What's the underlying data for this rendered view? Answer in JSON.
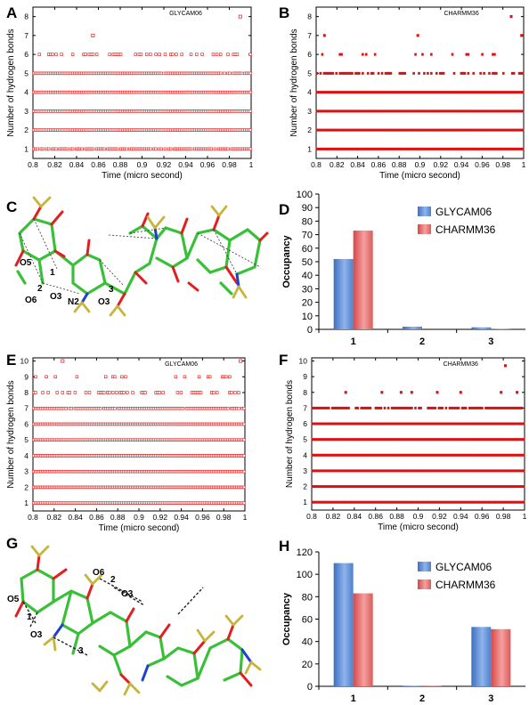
{
  "panels": {
    "A": {
      "label": "A"
    },
    "B": {
      "label": "B"
    },
    "C": {
      "label": "C"
    },
    "D": {
      "label": "D"
    },
    "E": {
      "label": "E"
    },
    "F": {
      "label": "F"
    },
    "G": {
      "label": "G"
    },
    "H": {
      "label": "H"
    }
  },
  "colors": {
    "red_marker": "#dd1111",
    "bar_blue": "#5b8fd6",
    "bar_red": "#e46a6a",
    "carbon": "#38c038",
    "oxygen": "#e02020",
    "nitrogen": "#2040d0",
    "sulfur": "#c8b43c"
  },
  "chart_data": [
    {
      "id": "A",
      "type": "scatter",
      "tag": "GLYCAM06",
      "xlabel": "Time (micro second)",
      "ylabel": "Number of hydrogen bonds",
      "xlim": [
        0.8,
        1.0
      ],
      "ylim": [
        0.5,
        8.5
      ],
      "xticks": [
        "0.8",
        "0.82",
        "0.84",
        "0.86",
        "0.88",
        "0.9",
        "0.92",
        "0.94",
        "0.96",
        "0.98",
        "1"
      ],
      "yticks": [
        "1",
        "2",
        "3",
        "4",
        "5",
        "6",
        "7",
        "8"
      ],
      "levels": [
        {
          "y": 1,
          "density": 0.72
        },
        {
          "y": 2,
          "density": 1.0
        },
        {
          "y": 3,
          "density": 1.0
        },
        {
          "y": 4,
          "density": 1.0
        },
        {
          "y": 5,
          "density": 0.98
        },
        {
          "y": 6,
          "density": 0.25
        }
      ],
      "sparse_points": [
        {
          "x": 0.855,
          "y": 7
        },
        {
          "x": 0.99,
          "y": 8
        }
      ],
      "marker": "open-square"
    },
    {
      "id": "B",
      "type": "scatter",
      "tag": "CHARMM36",
      "xlabel": "Time (micro second)",
      "ylabel": "Number of hydrogen bonds",
      "xlim": [
        0.8,
        1.0
      ],
      "ylim": [
        0.5,
        8.5
      ],
      "xticks": [
        "0.8",
        "0.82",
        "0.84",
        "0.86",
        "0.88",
        "0.9",
        "0.92",
        "0.94",
        "0.96",
        "0.98",
        "1"
      ],
      "yticks": [
        "1",
        "2",
        "3",
        "4",
        "5",
        "6",
        "7",
        "8"
      ],
      "levels": [
        {
          "y": 1,
          "density": 1.0
        },
        {
          "y": 2,
          "density": 1.0
        },
        {
          "y": 3,
          "density": 1.0
        },
        {
          "y": 4,
          "density": 1.0
        },
        {
          "y": 5,
          "density": 0.62
        },
        {
          "y": 6,
          "density": 0.16
        }
      ],
      "sparse_points": [
        {
          "x": 0.808,
          "y": 7
        },
        {
          "x": 0.898,
          "y": 7
        },
        {
          "x": 0.998,
          "y": 7
        },
        {
          "x": 0.988,
          "y": 8
        }
      ],
      "marker": "filled-square"
    },
    {
      "id": "D",
      "type": "bar",
      "ylabel": "Occupancy",
      "categories": [
        "1",
        "2",
        "3"
      ],
      "ylim": [
        0,
        100
      ],
      "yticks": [
        "0",
        "10",
        "20",
        "30",
        "40",
        "50",
        "60",
        "70",
        "80",
        "90",
        "100"
      ],
      "series": [
        {
          "name": "GLYCAM06",
          "values": [
            52,
            2,
            1.5
          ]
        },
        {
          "name": "CHARMM36",
          "values": [
            73,
            0,
            0.5
          ]
        }
      ],
      "legend": "top-right"
    },
    {
      "id": "E",
      "type": "scatter",
      "tag": "GLYCAM06",
      "xlabel": "Time (micro second)",
      "ylabel": "Number of hydrogen bonds",
      "xlim": [
        0.8,
        1.0
      ],
      "ylim": [
        0.5,
        10.2
      ],
      "xticks": [
        "0.8",
        "0.82",
        "0.84",
        "0.86",
        "0.88",
        "0.9",
        "0.92",
        "0.94",
        "0.96",
        "0.98",
        "1"
      ],
      "yticks": [
        "1",
        "2",
        "3",
        "4",
        "5",
        "6",
        "7",
        "8",
        "9",
        "10"
      ],
      "levels": [
        {
          "y": 1,
          "density": 1.0
        },
        {
          "y": 2,
          "density": 1.0
        },
        {
          "y": 3,
          "density": 1.0
        },
        {
          "y": 4,
          "density": 1.0
        },
        {
          "y": 5,
          "density": 1.0
        },
        {
          "y": 6,
          "density": 1.0
        },
        {
          "y": 7,
          "density": 0.97
        },
        {
          "y": 8,
          "density": 0.4
        },
        {
          "y": 9,
          "density": 0.12
        }
      ],
      "sparse_points": [
        {
          "x": 0.828,
          "y": 10
        },
        {
          "x": 0.996,
          "y": 10
        }
      ],
      "marker": "open-square"
    },
    {
      "id": "F",
      "type": "scatter",
      "tag": "CHARMM36",
      "xlabel": "Time (micro second)",
      "ylabel": "Number of hydrogen bonds",
      "xlim": [
        0.8,
        1.0
      ],
      "ylim": [
        0.5,
        10.2
      ],
      "xticks": [
        "0.8",
        "0.82",
        "0.84",
        "0.86",
        "0.88",
        "0.9",
        "0.92",
        "0.94",
        "0.96",
        "0.98",
        "1"
      ],
      "yticks": [
        "1",
        "2",
        "3",
        "4",
        "5",
        "6",
        "7",
        "8",
        "9",
        "10"
      ],
      "levels": [
        {
          "y": 1,
          "density": 1.0
        },
        {
          "y": 2,
          "density": 1.0
        },
        {
          "y": 3,
          "density": 1.0
        },
        {
          "y": 4,
          "density": 1.0
        },
        {
          "y": 5,
          "density": 1.0
        },
        {
          "y": 6,
          "density": 1.0
        },
        {
          "y": 7,
          "density": 0.85
        }
      ],
      "sparse_points": [
        {
          "x": 0.832,
          "y": 8
        },
        {
          "x": 0.866,
          "y": 8
        },
        {
          "x": 0.884,
          "y": 8
        },
        {
          "x": 0.894,
          "y": 8
        },
        {
          "x": 0.918,
          "y": 8
        },
        {
          "x": 0.94,
          "y": 8
        },
        {
          "x": 0.978,
          "y": 8
        },
        {
          "x": 0.993,
          "y": 8
        },
        {
          "x": 0.982,
          "y": 9.7
        }
      ],
      "marker": "filled-square"
    },
    {
      "id": "H",
      "type": "bar",
      "ylabel": "Occupancy",
      "categories": [
        "1",
        "2",
        "3"
      ],
      "ylim": [
        0,
        120
      ],
      "yticks": [
        "0",
        "20",
        "40",
        "60",
        "80",
        "100",
        "120"
      ],
      "series": [
        {
          "name": "GLYCAM06",
          "values": [
            110,
            0.5,
            53
          ]
        },
        {
          "name": "CHARMM36",
          "values": [
            83,
            0.3,
            51
          ]
        }
      ],
      "legend": "top-right"
    }
  ],
  "molecules": {
    "C": {
      "labels": [
        "O5",
        "1",
        "2",
        "O3",
        "O6",
        "N2",
        "3",
        "O3"
      ]
    },
    "G": {
      "labels": [
        "O5",
        "1",
        "O3",
        "3",
        "O6",
        "2",
        "O3"
      ]
    }
  }
}
